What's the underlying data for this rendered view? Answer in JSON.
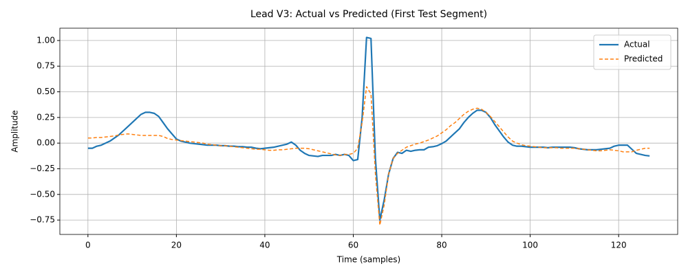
{
  "chart_data": {
    "type": "line",
    "title": "Lead V3: Actual vs Predicted (First Test Segment)",
    "x_label": "Time (samples)",
    "y_label": "Amplitude",
    "x": [
      0,
      1,
      2,
      3,
      4,
      5,
      6,
      7,
      8,
      9,
      10,
      11,
      12,
      13,
      14,
      15,
      16,
      17,
      18,
      19,
      20,
      21,
      22,
      23,
      24,
      25,
      26,
      27,
      28,
      29,
      30,
      31,
      32,
      33,
      34,
      35,
      36,
      37,
      38,
      39,
      40,
      41,
      42,
      43,
      44,
      45,
      46,
      47,
      48,
      49,
      50,
      51,
      52,
      53,
      54,
      55,
      56,
      57,
      58,
      59,
      60,
      61,
      62,
      63,
      64,
      65,
      66,
      67,
      68,
      69,
      70,
      71,
      72,
      73,
      74,
      75,
      76,
      77,
      78,
      79,
      80,
      81,
      82,
      83,
      84,
      85,
      86,
      87,
      88,
      89,
      90,
      91,
      92,
      93,
      94,
      95,
      96,
      97,
      98,
      99,
      100,
      101,
      102,
      103,
      104,
      105,
      106,
      107,
      108,
      109,
      110,
      111,
      112,
      113,
      114,
      115,
      116,
      117,
      118,
      119,
      120,
      121,
      122,
      123,
      124,
      125,
      126,
      127
    ],
    "series": [
      {
        "name": "Actual",
        "color": "#1f77b4",
        "dash": false,
        "values": [
          -0.05,
          -0.05,
          -0.03,
          -0.02,
          0.0,
          0.02,
          0.05,
          0.08,
          0.12,
          0.16,
          0.2,
          0.24,
          0.28,
          0.3,
          0.3,
          0.29,
          0.26,
          0.2,
          0.14,
          0.09,
          0.04,
          0.02,
          0.01,
          0.0,
          -0.005,
          -0.01,
          -0.015,
          -0.02,
          -0.02,
          -0.02,
          -0.025,
          -0.025,
          -0.03,
          -0.03,
          -0.035,
          -0.035,
          -0.04,
          -0.04,
          -0.05,
          -0.055,
          -0.05,
          -0.045,
          -0.04,
          -0.03,
          -0.02,
          -0.01,
          0.01,
          -0.02,
          -0.07,
          -0.1,
          -0.12,
          -0.125,
          -0.13,
          -0.12,
          -0.12,
          -0.12,
          -0.11,
          -0.12,
          -0.11,
          -0.12,
          -0.17,
          -0.16,
          0.25,
          1.03,
          1.02,
          -0.15,
          -0.75,
          -0.55,
          -0.3,
          -0.15,
          -0.09,
          -0.1,
          -0.07,
          -0.08,
          -0.07,
          -0.065,
          -0.065,
          -0.04,
          -0.035,
          -0.025,
          -0.005,
          0.02,
          0.06,
          0.1,
          0.14,
          0.2,
          0.25,
          0.29,
          0.32,
          0.32,
          0.3,
          0.25,
          0.18,
          0.12,
          0.06,
          0.01,
          -0.02,
          -0.03,
          -0.03,
          -0.035,
          -0.04,
          -0.04,
          -0.04,
          -0.04,
          -0.045,
          -0.04,
          -0.04,
          -0.04,
          -0.04,
          -0.04,
          -0.045,
          -0.055,
          -0.06,
          -0.065,
          -0.065,
          -0.065,
          -0.06,
          -0.055,
          -0.05,
          -0.03,
          -0.02,
          -0.02,
          -0.02,
          -0.06,
          -0.1,
          -0.11,
          -0.12,
          -0.125
        ]
      },
      {
        "name": "Predicted",
        "color": "#ff7f0e",
        "dash": true,
        "values": [
          0.05,
          0.05,
          0.055,
          0.055,
          0.06,
          0.065,
          0.07,
          0.08,
          0.085,
          0.09,
          0.085,
          0.08,
          0.075,
          0.075,
          0.075,
          0.075,
          0.075,
          0.065,
          0.045,
          0.035,
          0.03,
          0.025,
          0.02,
          0.015,
          0.01,
          0.005,
          0.0,
          -0.01,
          -0.015,
          -0.02,
          -0.025,
          -0.025,
          -0.03,
          -0.035,
          -0.04,
          -0.045,
          -0.05,
          -0.055,
          -0.06,
          -0.06,
          -0.065,
          -0.07,
          -0.07,
          -0.065,
          -0.065,
          -0.06,
          -0.055,
          -0.05,
          -0.05,
          -0.05,
          -0.055,
          -0.065,
          -0.075,
          -0.085,
          -0.095,
          -0.105,
          -0.115,
          -0.12,
          -0.11,
          -0.11,
          -0.1,
          -0.05,
          0.2,
          0.55,
          0.48,
          -0.3,
          -0.8,
          -0.6,
          -0.3,
          -0.15,
          -0.1,
          -0.07,
          -0.04,
          -0.025,
          -0.01,
          0.0,
          0.015,
          0.03,
          0.05,
          0.07,
          0.1,
          0.13,
          0.17,
          0.2,
          0.24,
          0.28,
          0.31,
          0.33,
          0.34,
          0.33,
          0.3,
          0.26,
          0.21,
          0.16,
          0.11,
          0.06,
          0.02,
          0.0,
          -0.015,
          -0.025,
          -0.03,
          -0.035,
          -0.04,
          -0.045,
          -0.045,
          -0.045,
          -0.045,
          -0.05,
          -0.05,
          -0.05,
          -0.05,
          -0.055,
          -0.06,
          -0.065,
          -0.07,
          -0.075,
          -0.075,
          -0.07,
          -0.065,
          -0.07,
          -0.075,
          -0.085,
          -0.085,
          -0.085,
          -0.07,
          -0.06,
          -0.05,
          -0.05
        ]
      }
    ],
    "xlim": [
      -6.35,
      133.35
    ],
    "ylim": [
      -0.89,
      1.12
    ],
    "xticks": [
      0,
      20,
      40,
      60,
      80,
      100,
      120
    ],
    "yticks": [
      {
        "value": -0.75,
        "label": "−0.75"
      },
      {
        "value": -0.5,
        "label": "−0.50"
      },
      {
        "value": -0.25,
        "label": "−0.25"
      },
      {
        "value": 0,
        "label": "0.00"
      },
      {
        "value": 0.25,
        "label": "0.25"
      },
      {
        "value": 0.5,
        "label": "0.50"
      },
      {
        "value": 0.75,
        "label": "0.75"
      },
      {
        "value": 1,
        "label": "1.00"
      }
    ],
    "grid": true,
    "legend": "upper-right"
  }
}
